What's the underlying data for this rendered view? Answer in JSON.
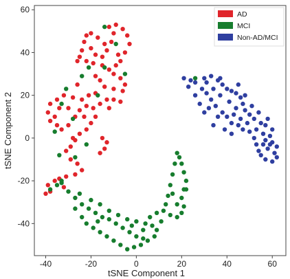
{
  "chart_data": {
    "type": "scatter",
    "title": "",
    "xlabel": "tSNE Component 1",
    "ylabel": "tSNE Component 2",
    "xlim": [
      -45,
      66
    ],
    "ylim": [
      -55,
      62
    ],
    "xticks": [
      -40,
      -20,
      0,
      20,
      40,
      60
    ],
    "yticks": [
      -40,
      -20,
      0,
      20,
      40,
      60
    ],
    "grid": false,
    "legend_position": "top-right",
    "series": [
      {
        "name": "AD",
        "color": "#e0252b",
        "points": [
          [
            -12,
            52
          ],
          [
            -9,
            53
          ],
          [
            -6,
            51
          ],
          [
            -4,
            48
          ],
          [
            -3,
            44
          ],
          [
            -5,
            40
          ],
          [
            -8,
            39
          ],
          [
            -13,
            41
          ],
          [
            -14,
            44
          ],
          [
            -17,
            47
          ],
          [
            -20,
            49
          ],
          [
            -22,
            48
          ],
          [
            -23,
            45
          ],
          [
            -24,
            41
          ],
          [
            -25,
            38
          ],
          [
            -22,
            36
          ],
          [
            -19,
            35
          ],
          [
            -15,
            34
          ],
          [
            -12,
            32
          ],
          [
            -10,
            30
          ],
          [
            -7,
            28
          ],
          [
            -5,
            25
          ],
          [
            -6,
            22
          ],
          [
            -10,
            23
          ],
          [
            -14,
            24
          ],
          [
            -18,
            21
          ],
          [
            -21,
            20
          ],
          [
            -24,
            18
          ],
          [
            -28,
            19
          ],
          [
            -32,
            20
          ],
          [
            -35,
            18
          ],
          [
            -38,
            16
          ],
          [
            -39,
            12
          ],
          [
            -38,
            8
          ],
          [
            -35,
            6
          ],
          [
            -33,
            4
          ],
          [
            -30,
            6
          ],
          [
            -27,
            10
          ],
          [
            -25,
            13
          ],
          [
            -22,
            15
          ],
          [
            -19,
            14
          ],
          [
            -16,
            16
          ],
          [
            -13,
            18
          ],
          [
            -10,
            18
          ],
          [
            -7,
            17
          ],
          [
            -18,
            10
          ],
          [
            -20,
            7
          ],
          [
            -22,
            4
          ],
          [
            -25,
            2
          ],
          [
            -27,
            -1
          ],
          [
            -29,
            -4
          ],
          [
            -31,
            -6
          ],
          [
            -29,
            -10
          ],
          [
            -26,
            -12
          ],
          [
            -24,
            -15
          ],
          [
            -27,
            -17
          ],
          [
            -31,
            -18
          ],
          [
            -34,
            -19
          ],
          [
            -36,
            -20
          ],
          [
            -39,
            -22
          ],
          [
            -40,
            -26
          ],
          [
            -38,
            -25
          ],
          [
            -32,
            -23
          ],
          [
            -15,
            0
          ],
          [
            -13,
            -2
          ],
          [
            -14,
            -5
          ],
          [
            -16,
            -7
          ],
          [
            -18,
            29
          ],
          [
            -16,
            27
          ],
          [
            -11,
            45
          ],
          [
            -15,
            38
          ],
          [
            -26,
            25
          ],
          [
            -30,
            14
          ],
          [
            -36,
            10
          ],
          [
            -34,
            14
          ],
          [
            -20,
            42
          ],
          [
            -7,
            36
          ],
          [
            -9,
            34
          ],
          [
            -23,
            10
          ],
          [
            -28,
            0
          ],
          [
            -12,
            14
          ],
          [
            -26,
            36
          ],
          [
            -10,
            49
          ],
          [
            -18,
            39
          ]
        ]
      },
      {
        "name": "MCI",
        "color": "#177d2e",
        "points": [
          [
            -38,
            -24
          ],
          [
            -35,
            -22
          ],
          [
            -33,
            -21
          ],
          [
            -30,
            -25
          ],
          [
            -27,
            -28
          ],
          [
            -24,
            -31
          ],
          [
            -21,
            -33
          ],
          [
            -18,
            -35
          ],
          [
            -15,
            -37
          ],
          [
            -12,
            -38
          ],
          [
            -9,
            -40
          ],
          [
            -6,
            -42
          ],
          [
            -3,
            -44
          ],
          [
            0,
            -46
          ],
          [
            3,
            -47
          ],
          [
            5,
            -48
          ],
          [
            2,
            -50
          ],
          [
            -1,
            -51
          ],
          [
            -4,
            -52
          ],
          [
            -7,
            -50
          ],
          [
            -10,
            -48
          ],
          [
            -13,
            -46
          ],
          [
            -16,
            -44
          ],
          [
            -19,
            -42
          ],
          [
            -22,
            -40
          ],
          [
            -24,
            -37
          ],
          [
            -20,
            -29
          ],
          [
            -16,
            -31
          ],
          [
            -12,
            -34
          ],
          [
            -8,
            -36
          ],
          [
            -4,
            -38
          ],
          [
            0,
            -39
          ],
          [
            4,
            -40
          ],
          [
            7,
            -41
          ],
          [
            9,
            -43
          ],
          [
            8,
            -46
          ],
          [
            6,
            -37
          ],
          [
            9,
            -35
          ],
          [
            12,
            -34
          ],
          [
            15,
            -36
          ],
          [
            18,
            -37
          ],
          [
            20,
            -35
          ],
          [
            21,
            -32
          ],
          [
            20,
            -28
          ],
          [
            21,
            -24
          ],
          [
            22,
            -20
          ],
          [
            21,
            -16
          ],
          [
            20,
            -12
          ],
          [
            19,
            -9
          ],
          [
            18,
            -7
          ],
          [
            17,
            -12
          ],
          [
            16,
            -17
          ],
          [
            15,
            -22
          ],
          [
            14,
            -27
          ],
          [
            13,
            -31
          ],
          [
            11,
            -39
          ],
          [
            -2,
            -41
          ],
          [
            -27,
            -33
          ],
          [
            -17,
            -39
          ],
          [
            3,
            -43
          ],
          [
            18,
            -31
          ],
          [
            16,
            -26
          ],
          [
            22,
            -24
          ],
          [
            -25,
            -26
          ],
          [
            -33,
            -20
          ],
          [
            -34,
            -8
          ],
          [
            -22,
            -3
          ],
          [
            -28,
            9
          ],
          [
            -33,
            16
          ],
          [
            -14,
            33
          ],
          [
            -24,
            29
          ],
          [
            -9,
            44
          ],
          [
            -17,
            20
          ],
          [
            -36,
            3
          ],
          [
            -27,
            -9
          ],
          [
            -14,
            52
          ],
          [
            -5,
            30
          ],
          [
            -31,
            23
          ],
          [
            -21,
            33
          ],
          [
            26,
            28
          ]
        ]
      },
      {
        "name": "Non-AD/MCI",
        "color": "#2f3fa0",
        "points": [
          [
            21,
            28
          ],
          [
            24,
            27
          ],
          [
            23,
            24
          ],
          [
            26,
            26
          ],
          [
            30,
            28
          ],
          [
            33,
            29
          ],
          [
            36,
            27
          ],
          [
            38,
            25
          ],
          [
            40,
            23
          ],
          [
            42,
            22
          ],
          [
            44,
            21
          ],
          [
            46,
            19
          ],
          [
            47,
            16
          ],
          [
            48,
            13
          ],
          [
            50,
            11
          ],
          [
            52,
            9
          ],
          [
            55,
            7
          ],
          [
            57,
            6
          ],
          [
            60,
            4
          ],
          [
            59,
            1
          ],
          [
            57,
            -1
          ],
          [
            56,
            -3
          ],
          [
            58,
            -5
          ],
          [
            61,
            -7
          ],
          [
            62,
            -9
          ],
          [
            60,
            -11
          ],
          [
            57,
            -10
          ],
          [
            55,
            -8
          ],
          [
            54,
            -6
          ],
          [
            53,
            -3
          ],
          [
            52,
            0
          ],
          [
            50,
            3
          ],
          [
            47,
            4
          ],
          [
            45,
            6
          ],
          [
            42,
            7
          ],
          [
            40,
            10
          ],
          [
            38,
            12
          ],
          [
            35,
            15
          ],
          [
            33,
            18
          ],
          [
            31,
            21
          ],
          [
            29,
            23
          ],
          [
            34,
            23
          ],
          [
            37,
            20
          ],
          [
            41,
            17
          ],
          [
            44,
            14
          ],
          [
            43,
            11
          ],
          [
            46,
            9
          ],
          [
            49,
            7
          ],
          [
            53,
            4
          ],
          [
            56,
            2
          ],
          [
            59,
            -3
          ],
          [
            36,
            10
          ],
          [
            32,
            14
          ],
          [
            39,
            4
          ],
          [
            31,
            26
          ],
          [
            26,
            20
          ],
          [
            28,
            16
          ],
          [
            30,
            12
          ],
          [
            48,
            20
          ],
          [
            51,
            15
          ],
          [
            54,
            12
          ],
          [
            58,
            9
          ],
          [
            60,
            -2
          ],
          [
            62,
            -4
          ],
          [
            45,
            25
          ],
          [
            37,
            28
          ],
          [
            34,
            6
          ],
          [
            42,
            2
          ]
        ]
      }
    ]
  }
}
